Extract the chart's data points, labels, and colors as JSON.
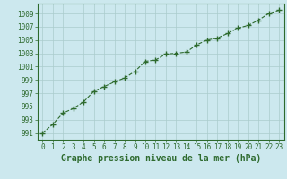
{
  "x": [
    0,
    1,
    2,
    3,
    4,
    5,
    6,
    7,
    8,
    9,
    10,
    11,
    12,
    13,
    14,
    15,
    16,
    17,
    18,
    19,
    20,
    21,
    22,
    23
  ],
  "y": [
    991.0,
    992.3,
    994.0,
    994.7,
    995.7,
    997.3,
    998.0,
    998.7,
    999.3,
    1000.3,
    1001.8,
    1002.0,
    1002.9,
    1003.0,
    1003.2,
    1004.3,
    1005.0,
    1005.3,
    1006.0,
    1006.8,
    1007.2,
    1008.0,
    1009.0,
    1009.5
  ],
  "line_color": "#2d6a2d",
  "marker": "+",
  "marker_size": 5,
  "bg_color": "#cce8ee",
  "grid_color": "#aacccc",
  "xlabel": "Graphe pression niveau de la mer (hPa)",
  "xlabel_fontsize": 7,
  "ylabel_ticks": [
    991,
    993,
    995,
    997,
    999,
    1001,
    1003,
    1005,
    1007,
    1009
  ],
  "xlim": [
    -0.5,
    23.5
  ],
  "ylim": [
    990.0,
    1010.5
  ],
  "xtick_labels": [
    "0",
    "1",
    "2",
    "3",
    "4",
    "5",
    "6",
    "7",
    "8",
    "9",
    "10",
    "11",
    "12",
    "13",
    "14",
    "15",
    "16",
    "17",
    "18",
    "19",
    "20",
    "21",
    "22",
    "23"
  ],
  "tick_fontsize": 5.5,
  "line_width": 0.8,
  "marker_color": "#2d6a2d"
}
